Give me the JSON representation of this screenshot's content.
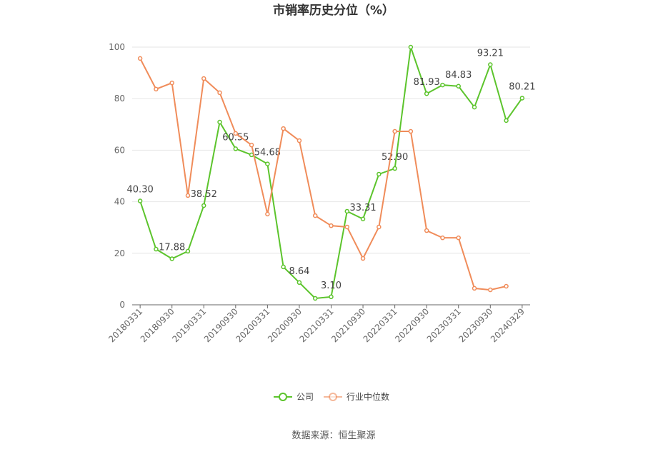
{
  "chart_data": {
    "type": "line",
    "title": "市销率历史分位（%）",
    "source": "数据来源：恒生聚源",
    "categories": [
      "20180331",
      null,
      "20180930",
      null,
      "20190331",
      null,
      "20190930",
      null,
      "20200331",
      null,
      "20200930",
      null,
      "20210331",
      null,
      "20210930",
      null,
      "20220331",
      null,
      "20220930",
      null,
      "20230331",
      null,
      "20230930",
      null,
      "20240329"
    ],
    "series": [
      {
        "name": "公司",
        "color": "#5cc42c",
        "values": [
          40.3,
          21.6,
          17.88,
          20.8,
          38.52,
          70.9,
          60.55,
          58.2,
          54.68,
          14.7,
          8.64,
          2.5,
          3.1,
          36.3,
          33.31,
          50.7,
          52.9,
          100,
          81.93,
          85.3,
          84.83,
          76.7,
          93.21,
          71.5,
          80.21
        ],
        "value_labels": [
          "40.30",
          null,
          "17.88",
          null,
          "38.52",
          null,
          "60.55",
          null,
          "54.68",
          null,
          "8.64",
          null,
          "3.10",
          null,
          "33.31",
          null,
          "52.90",
          null,
          "81.93",
          null,
          "84.83",
          null,
          "93.21",
          null,
          "80.21"
        ]
      },
      {
        "name": "行业中位数",
        "color": "#f08c5a",
        "values": [
          95.6,
          83.7,
          86.1,
          42.4,
          87.8,
          82.3,
          66.5,
          62.0,
          35.2,
          68.4,
          63.7,
          34.6,
          30.7,
          30.2,
          18.0,
          30.2,
          67.3,
          67.3,
          28.8,
          26.0,
          26.0,
          6.4,
          5.8,
          7.2,
          null
        ]
      }
    ],
    "ylim": [
      0,
      100
    ],
    "yticks": [
      0,
      20,
      40,
      60,
      80,
      100
    ],
    "grid": true
  }
}
